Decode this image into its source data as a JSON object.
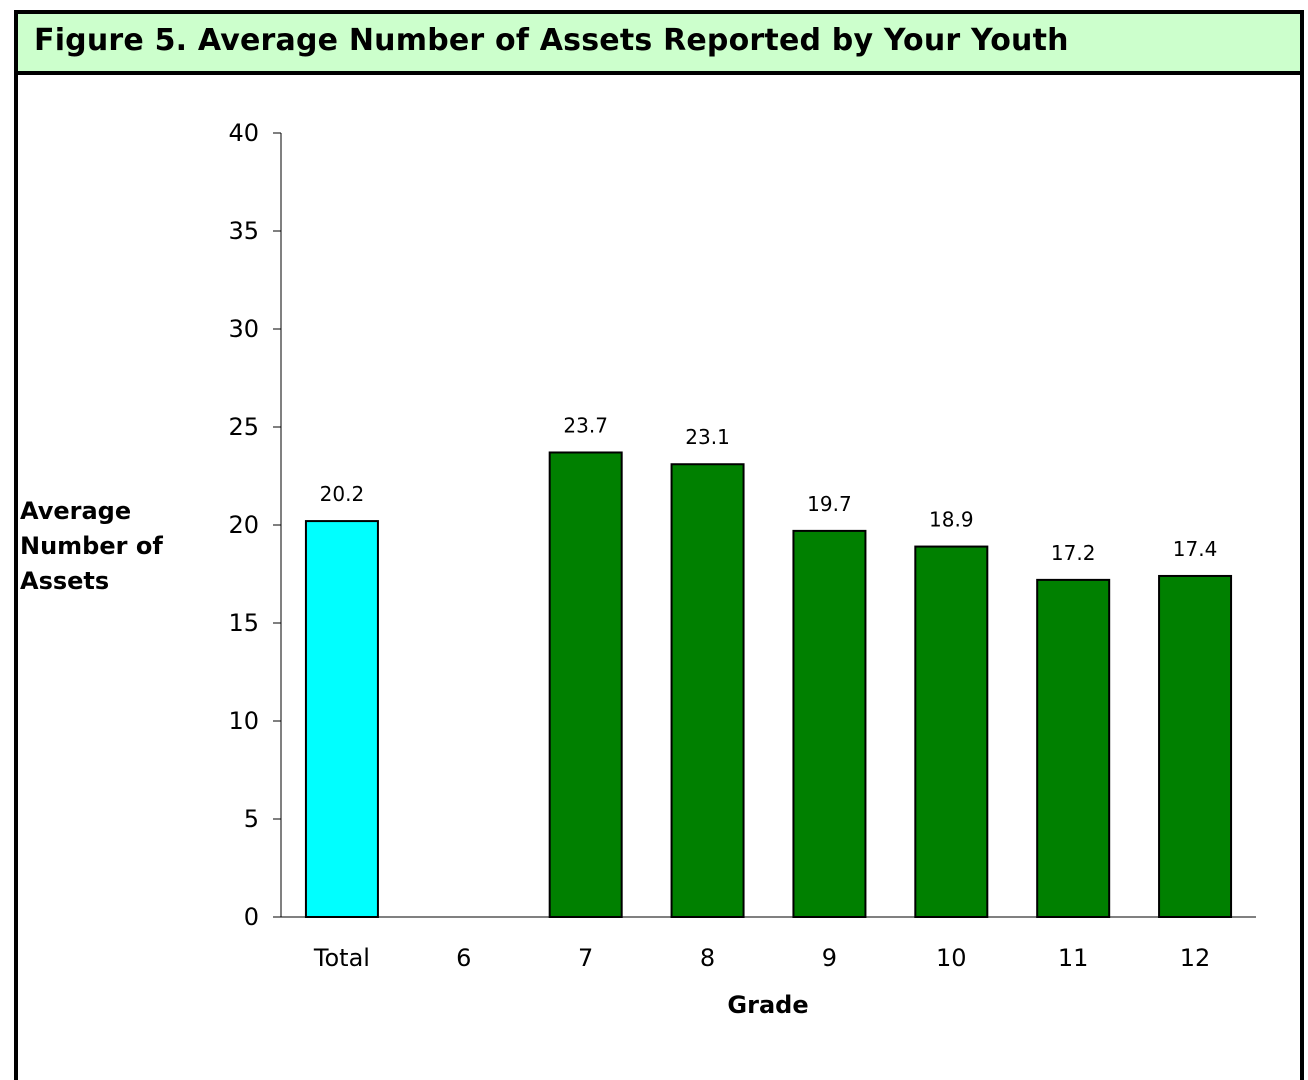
{
  "figure": {
    "title": "Figure 5.  Average Number of Assets Reported by Your Youth"
  },
  "colors": {
    "title_background": "#ccffcc",
    "total_bar": "#00ffff",
    "grade_bar": "#008000"
  },
  "chart_data": {
    "type": "bar",
    "title": "Figure 5.  Average Number of Assets Reported by Your Youth",
    "xlabel": "Grade",
    "ylabel": "Average Number of Assets",
    "ylim": [
      0,
      40
    ],
    "yticks": [
      "0",
      "5",
      "10",
      "15",
      "20",
      "25",
      "30",
      "35",
      "40"
    ],
    "grid": false,
    "categories": [
      "Total",
      "6",
      "7",
      "8",
      "9",
      "10",
      "11",
      "12"
    ],
    "values": [
      20.2,
      null,
      23.7,
      23.1,
      19.7,
      18.9,
      17.2,
      17.4
    ],
    "value_labels": [
      "20.2",
      "",
      "23.7",
      "23.1",
      "19.7",
      "18.9",
      "17.2",
      "17.4"
    ],
    "bar_colors": [
      "#00ffff",
      null,
      "#008000",
      "#008000",
      "#008000",
      "#008000",
      "#008000",
      "#008000"
    ]
  }
}
